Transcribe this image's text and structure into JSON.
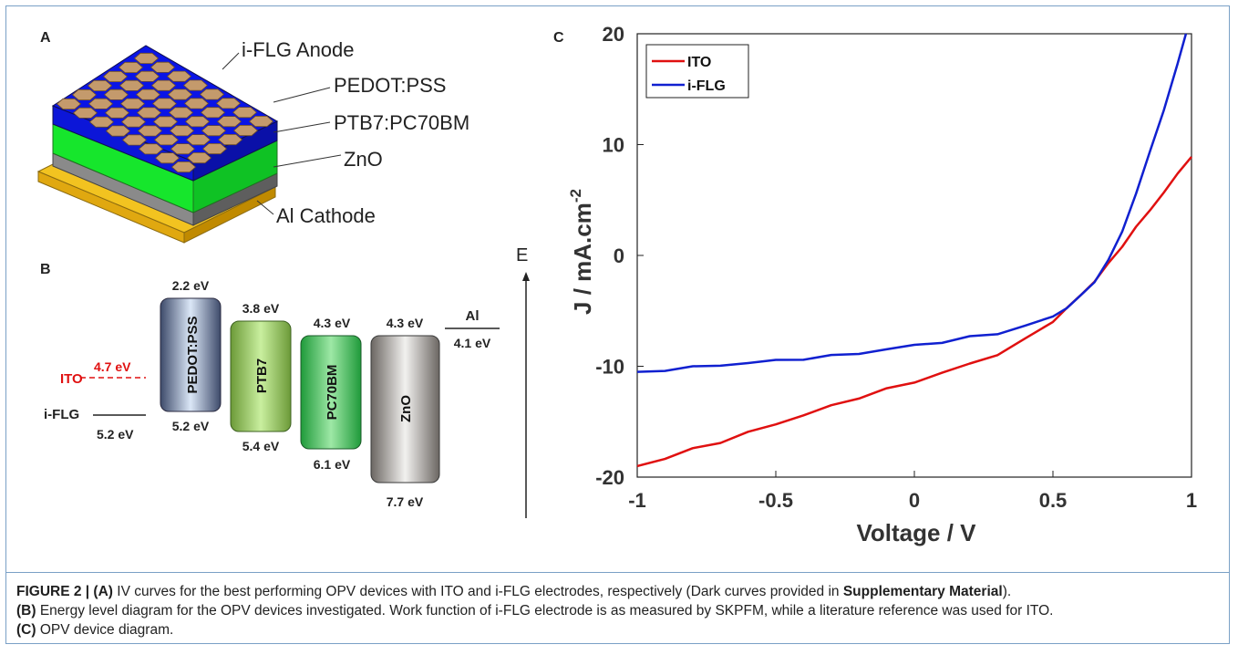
{
  "panel_a": {
    "letter": "A",
    "layers": [
      "i-FLG Anode",
      "PEDOT:PSS",
      "PTB7:PC70BM",
      "ZnO",
      "Al Cathode"
    ],
    "colors": {
      "blue": "#0a14e0",
      "green": "#10e028",
      "grey": "#8a8a8a",
      "gold": "#f2c320",
      "hex": "#c49a6c"
    }
  },
  "panel_b": {
    "letter": "B",
    "axis_label": "E",
    "ito_label": "ITO",
    "ito_value": "4.7 eV",
    "ifl_label": "i-FLG",
    "ifl_value": "5.2 eV",
    "al_label": "Al",
    "al_value": "4.1 eV",
    "boxes": [
      {
        "name": "PEDOT:PSS",
        "top": "2.2 eV",
        "bottom": "5.2 eV"
      },
      {
        "name": "PTB7",
        "top": "3.8 eV",
        "bottom": "5.4 eV"
      },
      {
        "name": "PC70BM",
        "top": "4.3 eV",
        "bottom": "6.1 eV"
      },
      {
        "name": "ZnO",
        "top": "4.3 eV",
        "bottom": "7.7 eV"
      }
    ]
  },
  "chart_data": {
    "type": "line",
    "panel_letter": "C",
    "xlabel": "Voltage / V",
    "ylabel": "J / mA.cm",
    "ylabel_superscript": "-2",
    "xlim": [
      -1,
      1
    ],
    "ylim": [
      -20,
      20
    ],
    "xticks": [
      "-1",
      "-0.5",
      "0",
      "0.5",
      "1"
    ],
    "yticks": [
      "20",
      "10",
      "0",
      "-10",
      "-20"
    ],
    "legend_position": "top-left",
    "series": [
      {
        "name": "ITO",
        "color": "#e01010",
        "x": [
          -1,
          -0.9,
          -0.8,
          -0.7,
          -0.6,
          -0.5,
          -0.4,
          -0.3,
          -0.2,
          -0.1,
          0,
          0.1,
          0.2,
          0.3,
          0.4,
          0.5,
          0.55,
          0.6,
          0.65,
          0.7,
          0.75,
          0.8,
          0.85,
          0.9,
          0.95,
          1.0
        ],
        "y": [
          -19,
          -18.3,
          -17.5,
          -16.8,
          -16.0,
          -15.2,
          -14.4,
          -13.6,
          -12.8,
          -12.1,
          -11.4,
          -10.6,
          -9.8,
          -8.9,
          -7.6,
          -5.9,
          -4.8,
          -3.6,
          -2.3,
          -0.8,
          0.9,
          2.5,
          4.1,
          5.7,
          7.3,
          8.9
        ]
      },
      {
        "name": "i-FLG",
        "color": "#1020d0",
        "x": [
          -1,
          -0.9,
          -0.8,
          -0.7,
          -0.6,
          -0.5,
          -0.4,
          -0.3,
          -0.2,
          -0.1,
          0,
          0.1,
          0.2,
          0.3,
          0.4,
          0.5,
          0.55,
          0.6,
          0.65,
          0.7,
          0.75,
          0.8,
          0.85,
          0.9,
          0.95,
          0.98
        ],
        "y": [
          -10.5,
          -10.3,
          -10.1,
          -9.9,
          -9.7,
          -9.5,
          -9.3,
          -9.1,
          -8.8,
          -8.5,
          -8.1,
          -7.8,
          -7.4,
          -7.0,
          -6.4,
          -5.5,
          -4.7,
          -3.7,
          -2.3,
          -0.5,
          2.2,
          5.6,
          9.3,
          13.2,
          17.2,
          20
        ]
      }
    ]
  },
  "caption": {
    "line1_bold": "FIGURE 2 | (A)",
    "line1_text": " IV curves for the best performing OPV devices with ITO and i-FLG electrodes, respectively (Dark curves provided in ",
    "line1_bold2": "Supplementary Material",
    "line1_end": ").",
    "line2_bold": "(B)",
    "line2_text": " Energy level diagram for the OPV devices investigated. Work function of i-FLG electrode is as measured by SKPFM, while a literature reference was used for ITO.",
    "line3_bold": "(C)",
    "line3_text": " OPV device diagram."
  }
}
